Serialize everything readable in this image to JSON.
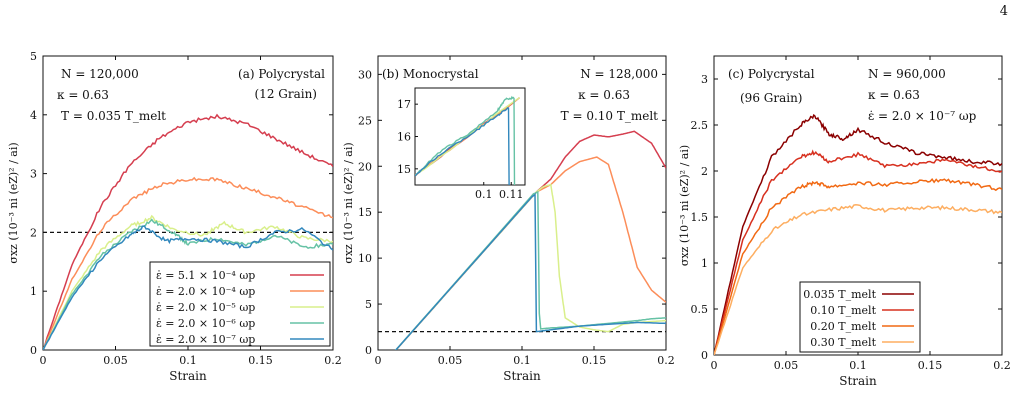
{
  "page_number": "4",
  "chart_data": [
    {
      "type": "line",
      "panel_title": "(a) Polycrystal",
      "panel_subtitle": "(12 Grain)",
      "annotations": [
        "N = 120,000",
        "κ = 0.63",
        "T = 0.035 T_melt"
      ],
      "xlabel": "Strain",
      "ylabel": "σxz (10⁻³ ni (eZ)² / ai)",
      "xlim": [
        0,
        0.2
      ],
      "ylim": [
        0,
        5
      ],
      "xticks": [
        "0",
        "0.05",
        "0.1",
        "0.15",
        "0.2"
      ],
      "yticks": [
        "0",
        "1",
        "2",
        "3",
        "4",
        "5"
      ],
      "hline": 2.0,
      "legend": "bottom-right",
      "series": [
        {
          "name": "ε̇ = 5.1 × 10⁻⁴ ωp",
          "color": "#d53e4f",
          "points": [
            [
              0,
              0
            ],
            [
              0.02,
              1.45
            ],
            [
              0.04,
              2.45
            ],
            [
              0.06,
              3.15
            ],
            [
              0.08,
              3.6
            ],
            [
              0.1,
              3.88
            ],
            [
              0.12,
              3.97
            ],
            [
              0.14,
              3.85
            ],
            [
              0.16,
              3.6
            ],
            [
              0.18,
              3.35
            ],
            [
              0.2,
              3.12
            ]
          ]
        },
        {
          "name": "ε̇ = 2.0 × 10⁻⁴ ωp",
          "color": "#fc8d59",
          "points": [
            [
              0,
              0
            ],
            [
              0.02,
              1.2
            ],
            [
              0.04,
              2.05
            ],
            [
              0.06,
              2.55
            ],
            [
              0.08,
              2.8
            ],
            [
              0.1,
              2.9
            ],
            [
              0.12,
              2.9
            ],
            [
              0.14,
              2.75
            ],
            [
              0.16,
              2.6
            ],
            [
              0.18,
              2.42
            ],
            [
              0.2,
              2.25
            ]
          ]
        },
        {
          "name": "ε̇ = 2.0 × 10⁻⁵ ωp",
          "color": "#d9ef8b",
          "points": [
            [
              0,
              0
            ],
            [
              0.02,
              1.0
            ],
            [
              0.04,
              1.7
            ],
            [
              0.06,
              2.1
            ],
            [
              0.075,
              2.25
            ],
            [
              0.09,
              2.05
            ],
            [
              0.11,
              1.95
            ],
            [
              0.125,
              2.15
            ],
            [
              0.14,
              2.0
            ],
            [
              0.16,
              2.1
            ],
            [
              0.18,
              1.9
            ],
            [
              0.2,
              1.85
            ]
          ]
        },
        {
          "name": "ε̇ = 2.0 × 10⁻⁶ ωp",
          "color": "#66c2a5",
          "points": [
            [
              0,
              0
            ],
            [
              0.02,
              0.95
            ],
            [
              0.04,
              1.6
            ],
            [
              0.06,
              2.0
            ],
            [
              0.075,
              2.2
            ],
            [
              0.09,
              2.0
            ],
            [
              0.1,
              1.8
            ],
            [
              0.12,
              1.9
            ],
            [
              0.14,
              1.78
            ],
            [
              0.16,
              1.95
            ],
            [
              0.18,
              1.75
            ],
            [
              0.2,
              1.8
            ]
          ]
        },
        {
          "name": "ε̇ = 2.0 × 10⁻⁷ ωp",
          "color": "#3288bd",
          "points": [
            [
              0,
              0
            ],
            [
              0.02,
              0.9
            ],
            [
              0.04,
              1.55
            ],
            [
              0.06,
              1.95
            ],
            [
              0.07,
              2.1
            ],
            [
              0.085,
              1.85
            ],
            [
              0.1,
              1.9
            ],
            [
              0.12,
              1.85
            ],
            [
              0.14,
              1.75
            ],
            [
              0.16,
              2.0
            ],
            [
              0.18,
              2.05
            ],
            [
              0.2,
              1.7
            ]
          ]
        }
      ]
    },
    {
      "type": "line",
      "panel_title": "(b) Monocrystal",
      "annotations": [
        "N = 128,000",
        "κ = 0.63",
        "T = 0.10 T_melt"
      ],
      "xlabel": "Strain",
      "ylabel": "σxz (10⁻³ ni (eZ)² / ai)",
      "xlim": [
        0,
        0.2
      ],
      "ylim": [
        0,
        32
      ],
      "xticks": [
        "0",
        "0.05",
        "0.1",
        "0.15",
        "0.2"
      ],
      "yticks": [
        "0",
        "5",
        "10",
        "15",
        "20",
        "25",
        "30"
      ],
      "hline": 2.0,
      "series": [
        {
          "name": "ε̇ = 5.1 × 10⁻⁴ ωp",
          "color": "#d53e4f",
          "points": [
            [
              0,
              -2.2
            ],
            [
              0.11,
              17.2
            ],
            [
              0.12,
              18.6
            ],
            [
              0.13,
              21.0
            ],
            [
              0.14,
              22.7
            ],
            [
              0.15,
              23.4
            ],
            [
              0.16,
              23.2
            ],
            [
              0.17,
              23.5
            ],
            [
              0.178,
              23.8
            ],
            [
              0.19,
              22.5
            ],
            [
              0.2,
              19.8
            ]
          ]
        },
        {
          "name": "ε̇ = 2.0 × 10⁻⁴ ωp",
          "color": "#fc8d59",
          "points": [
            [
              0,
              -2.2
            ],
            [
              0.11,
              17.2
            ],
            [
              0.12,
              18.0
            ],
            [
              0.13,
              19.5
            ],
            [
              0.14,
              20.5
            ],
            [
              0.152,
              21.0
            ],
            [
              0.16,
              20.2
            ],
            [
              0.17,
              15.0
            ],
            [
              0.18,
              9.0
            ],
            [
              0.19,
              6.5
            ],
            [
              0.2,
              5.2
            ]
          ]
        },
        {
          "name": "ε̇ = 2.0 × 10⁻⁵ ωp",
          "color": "#d9ef8b",
          "points": [
            [
              0,
              -2.2
            ],
            [
              0.11,
              17.2
            ],
            [
              0.115,
              17.8
            ],
            [
              0.12,
              18.0
            ],
            [
              0.123,
              15.0
            ],
            [
              0.126,
              8.0
            ],
            [
              0.13,
              3.5
            ],
            [
              0.14,
              2.5
            ],
            [
              0.15,
              2.2
            ],
            [
              0.16,
              2.0
            ],
            [
              0.17,
              2.8
            ],
            [
              0.18,
              3.0
            ],
            [
              0.2,
              3.2
            ]
          ]
        },
        {
          "name": "ε̇ = 2.0 × 10⁻⁶ ωp",
          "color": "#66c2a5",
          "points": [
            [
              0,
              -2.2
            ],
            [
              0.108,
              17.0
            ],
            [
              0.111,
              17.2
            ],
            [
              0.112,
              4.0
            ],
            [
              0.113,
              2.3
            ],
            [
              0.12,
              2.4
            ],
            [
              0.14,
              2.6
            ],
            [
              0.16,
              2.9
            ],
            [
              0.18,
              3.2
            ],
            [
              0.19,
              3.4
            ],
            [
              0.2,
              3.5
            ]
          ]
        },
        {
          "name": "ε̇ = 2.0 × 10⁻⁷ ωp",
          "color": "#3288bd",
          "points": [
            [
              0,
              -2.2
            ],
            [
              0.107,
              16.7
            ],
            [
              0.109,
              16.9
            ],
            [
              0.11,
              2.0
            ],
            [
              0.12,
              2.2
            ],
            [
              0.14,
              2.6
            ],
            [
              0.16,
              2.8
            ],
            [
              0.18,
              3.0
            ],
            [
              0.2,
              2.9
            ]
          ]
        }
      ],
      "inset": {
        "xlim": [
          0.075,
          0.115
        ],
        "ylim": [
          14.5,
          17.5
        ],
        "xticks": [
          "0.1",
          "0.11"
        ],
        "yticks": [
          "15",
          "16",
          "17"
        ],
        "series": [
          {
            "color": "#d53e4f",
            "points": [
              [
                0.075,
                14.8
              ],
              [
                0.113,
                17.2
              ]
            ]
          },
          {
            "color": "#fc8d59",
            "points": [
              [
                0.075,
                14.8
              ],
              [
                0.113,
                17.2
              ]
            ]
          },
          {
            "color": "#d9ef8b",
            "points": [
              [
                0.075,
                14.8
              ],
              [
                0.113,
                17.2
              ]
            ]
          },
          {
            "color": "#66c2a5",
            "points": [
              [
                0.075,
                14.8
              ],
              [
                0.085,
                15.6
              ],
              [
                0.095,
                16.1
              ],
              [
                0.105,
                16.8
              ],
              [
                0.108,
                17.15
              ],
              [
                0.111,
                17.2
              ],
              [
                0.1112,
                14.5
              ]
            ]
          },
          {
            "color": "#3288bd",
            "points": [
              [
                0.075,
                14.8
              ],
              [
                0.085,
                15.5
              ],
              [
                0.095,
                16.05
              ],
              [
                0.105,
                16.65
              ],
              [
                0.109,
                16.9
              ],
              [
                0.1092,
                14.5
              ]
            ]
          }
        ]
      }
    },
    {
      "type": "line",
      "panel_title": "(c) Polycrystal",
      "panel_subtitle": "(96 Grain)",
      "annotations": [
        "N = 960,000",
        "κ = 0.63",
        "ε̇ = 2.0 × 10⁻⁷ ωp"
      ],
      "xlabel": "Strain",
      "ylabel": "σxz (10⁻³ ni (eZ)² / ai)",
      "xlim": [
        0,
        0.2
      ],
      "ylim": [
        0,
        3.25
      ],
      "xticks": [
        "0",
        "0.05",
        "0.1",
        "0.15",
        "0.2"
      ],
      "yticks": [
        "0",
        "0.5",
        "1",
        "1.5",
        "2",
        "2.5",
        "3"
      ],
      "legend": "bottom-center",
      "series": [
        {
          "name": "0.035 T_melt",
          "color": "#8b0000",
          "points": [
            [
              0,
              0
            ],
            [
              0.02,
              1.4
            ],
            [
              0.04,
              2.15
            ],
            [
              0.06,
              2.5
            ],
            [
              0.07,
              2.6
            ],
            [
              0.08,
              2.4
            ],
            [
              0.09,
              2.35
            ],
            [
              0.1,
              2.45
            ],
            [
              0.12,
              2.3
            ],
            [
              0.14,
              2.2
            ],
            [
              0.16,
              2.15
            ],
            [
              0.18,
              2.1
            ],
            [
              0.2,
              2.08
            ]
          ]
        },
        {
          "name": "0.10 T_melt",
          "color": "#d7301f",
          "points": [
            [
              0,
              0
            ],
            [
              0.02,
              1.25
            ],
            [
              0.04,
              1.9
            ],
            [
              0.06,
              2.15
            ],
            [
              0.07,
              2.2
            ],
            [
              0.08,
              2.1
            ],
            [
              0.1,
              2.18
            ],
            [
              0.12,
              2.05
            ],
            [
              0.14,
              2.08
            ],
            [
              0.16,
              2.12
            ],
            [
              0.18,
              2.05
            ],
            [
              0.2,
              2.0
            ]
          ]
        },
        {
          "name": "0.20 T_melt",
          "color": "#f16913",
          "points": [
            [
              0,
              0
            ],
            [
              0.02,
              1.1
            ],
            [
              0.04,
              1.6
            ],
            [
              0.06,
              1.82
            ],
            [
              0.07,
              1.88
            ],
            [
              0.08,
              1.83
            ],
            [
              0.1,
              1.87
            ],
            [
              0.12,
              1.85
            ],
            [
              0.14,
              1.88
            ],
            [
              0.16,
              1.9
            ],
            [
              0.18,
              1.85
            ],
            [
              0.2,
              1.8
            ]
          ]
        },
        {
          "name": "0.30 T_melt",
          "color": "#fdae61",
          "points": [
            [
              0,
              0
            ],
            [
              0.02,
              0.95
            ],
            [
              0.04,
              1.35
            ],
            [
              0.06,
              1.52
            ],
            [
              0.08,
              1.58
            ],
            [
              0.1,
              1.62
            ],
            [
              0.12,
              1.57
            ],
            [
              0.14,
              1.6
            ],
            [
              0.16,
              1.6
            ],
            [
              0.18,
              1.58
            ],
            [
              0.2,
              1.55
            ]
          ]
        }
      ]
    }
  ]
}
